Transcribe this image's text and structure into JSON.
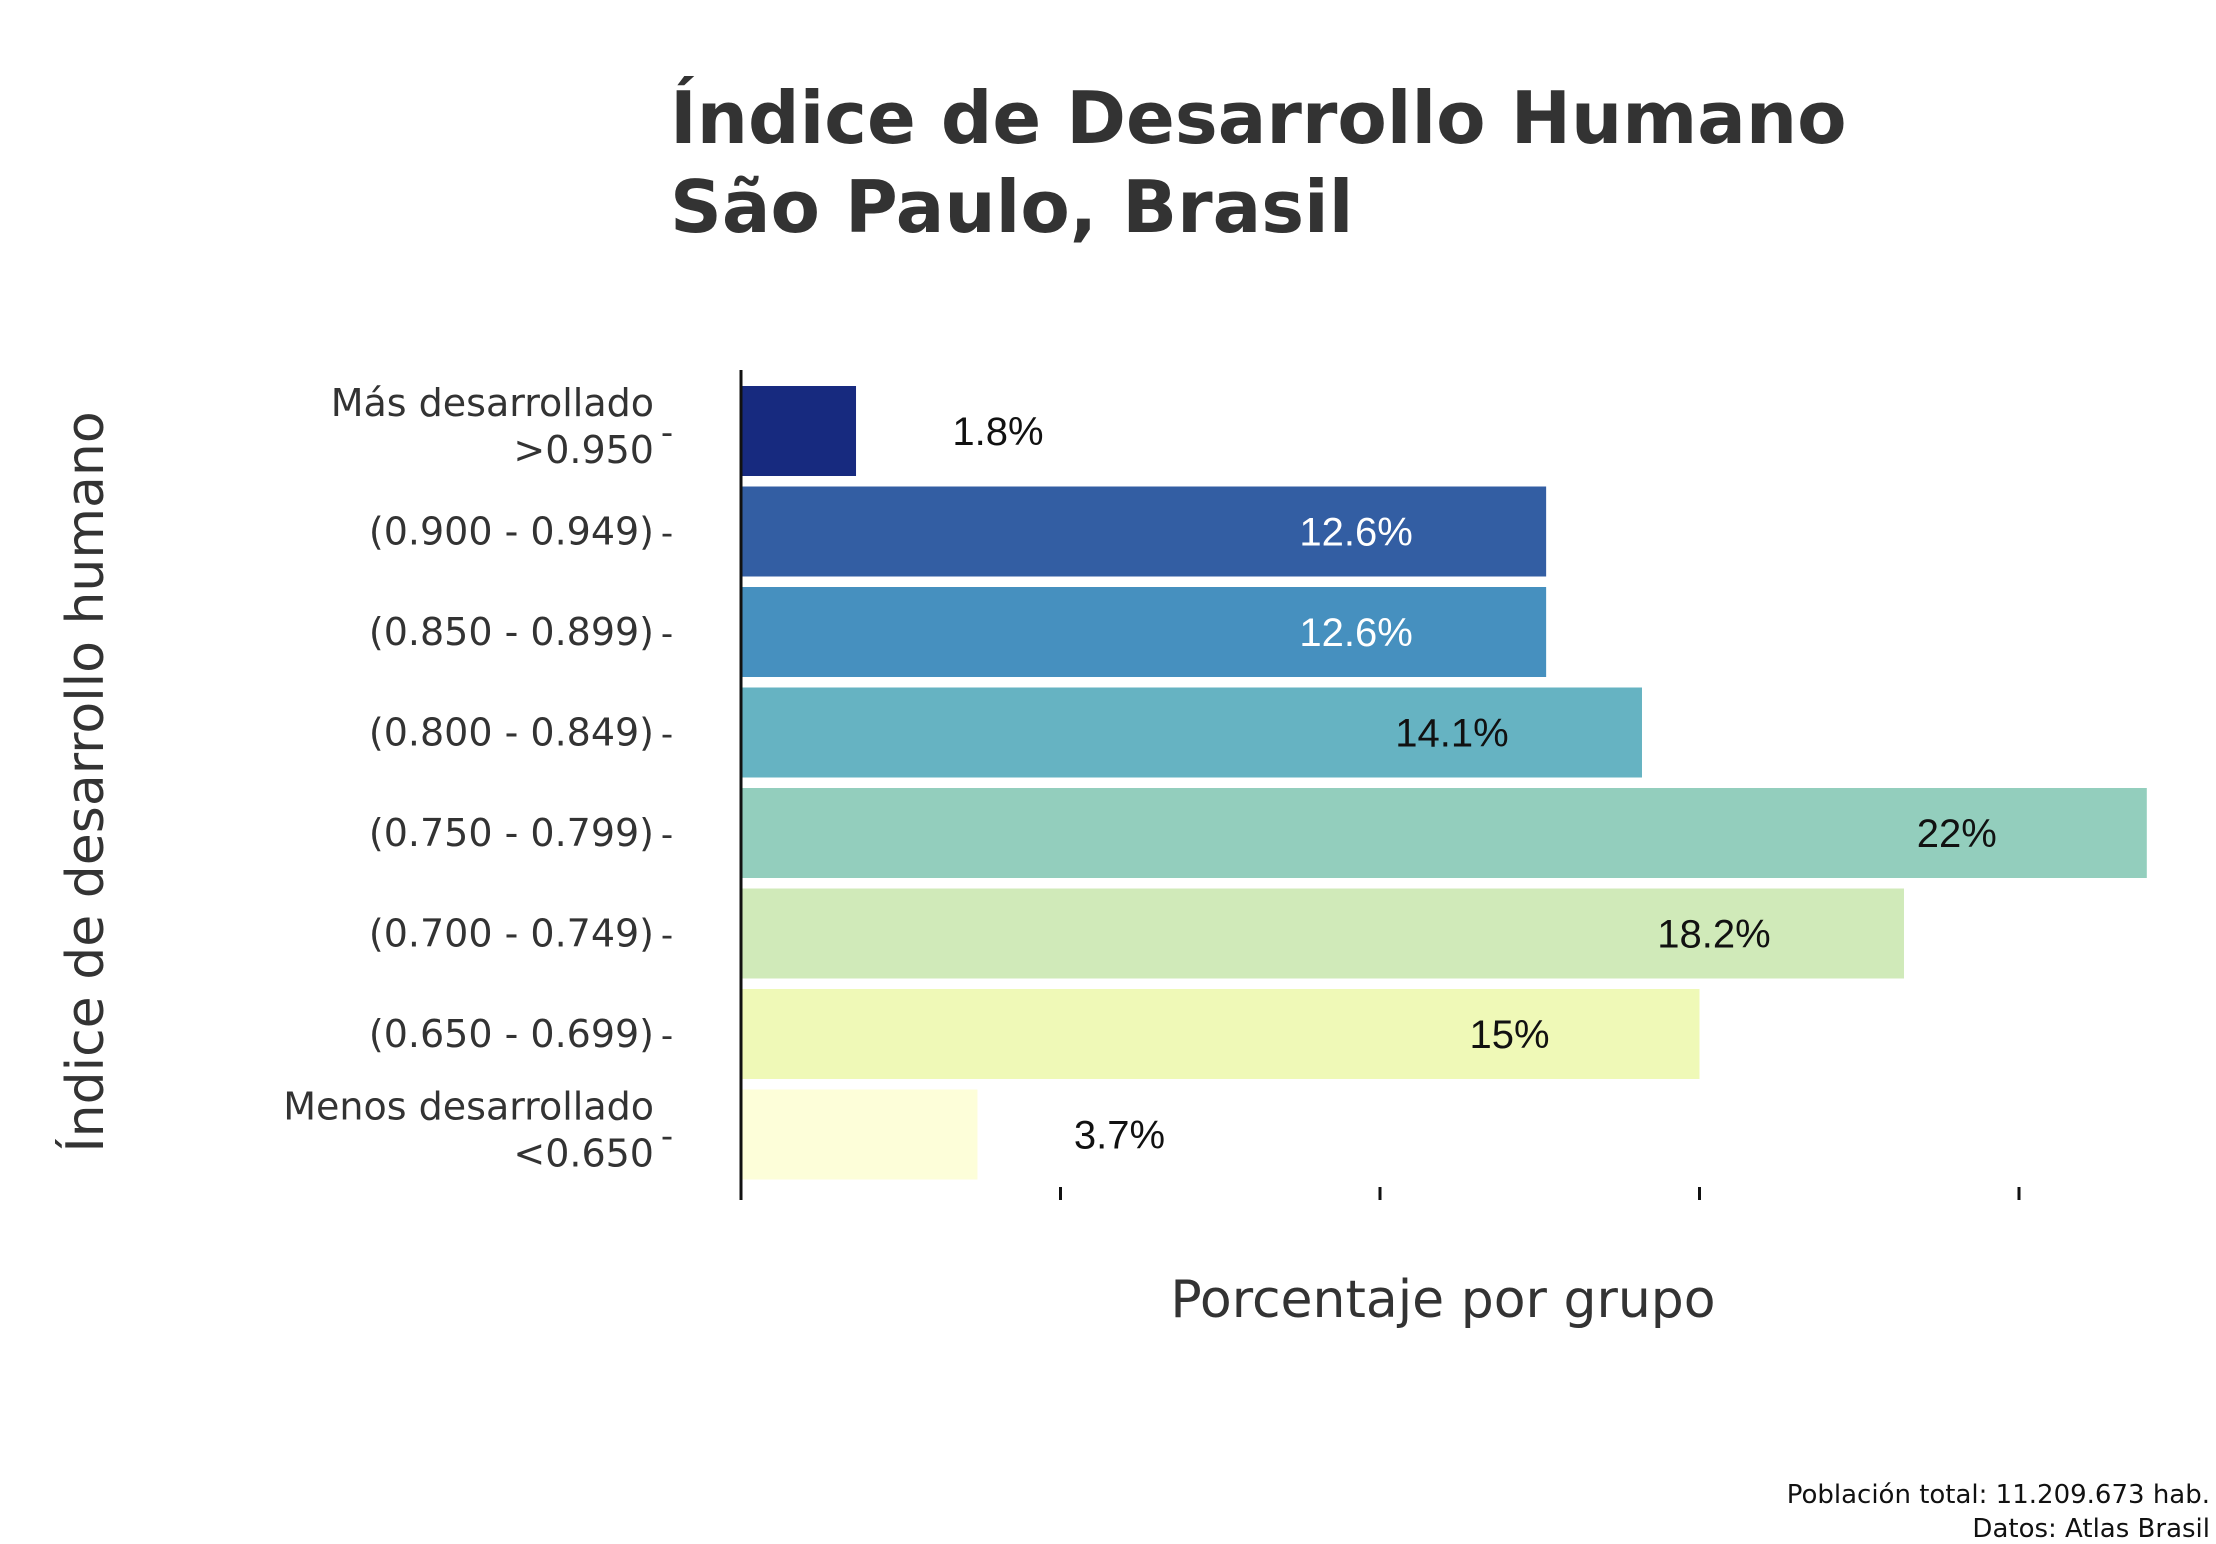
{
  "chart_data": {
    "type": "bar",
    "orientation": "horizontal",
    "title_lines": [
      "Índice de Desarrollo Humano",
      "São Paulo, Brasil"
    ],
    "xlabel": "Porcentaje por grupo",
    "ylabel": "Índice de desarrollo humano",
    "categories": [
      [
        "Más desarrollado",
        ">0.950"
      ],
      [
        "(0.900 - 0.949)"
      ],
      [
        "(0.850 - 0.899)"
      ],
      [
        "(0.800 - 0.849)"
      ],
      [
        "(0.750 - 0.799)"
      ],
      [
        "(0.700 - 0.749)"
      ],
      [
        "(0.650 - 0.699)"
      ],
      [
        "Menos desarrollado",
        "<0.650"
      ]
    ],
    "values": [
      1.8,
      12.6,
      12.6,
      14.1,
      22,
      18.2,
      15,
      3.7
    ],
    "value_labels": [
      "1.8%",
      "12.6%",
      "12.6%",
      "14.1%",
      "22%",
      "18.2%",
      "15%",
      "3.7%"
    ],
    "colors": [
      "#172a7f",
      "#335ea3",
      "#4690bf",
      "#66b3c2",
      "#93cebd",
      "#d0eab9",
      "#eff9b7",
      "#fdfed9"
    ],
    "label_colors": [
      "#111111",
      "#ffffff",
      "#ffffff",
      "#111111",
      "#111111",
      "#111111",
      "#111111",
      "#111111"
    ],
    "xlim": [
      0,
      22
    ],
    "x_ticks": [
      0,
      5,
      10,
      15,
      20
    ],
    "x_tick_labels_shown": false,
    "grid": false,
    "legend": "none",
    "caption_lines": [
      "Población total: 11.209.673 hab.",
      "Datos: Atlas Brasil"
    ]
  }
}
